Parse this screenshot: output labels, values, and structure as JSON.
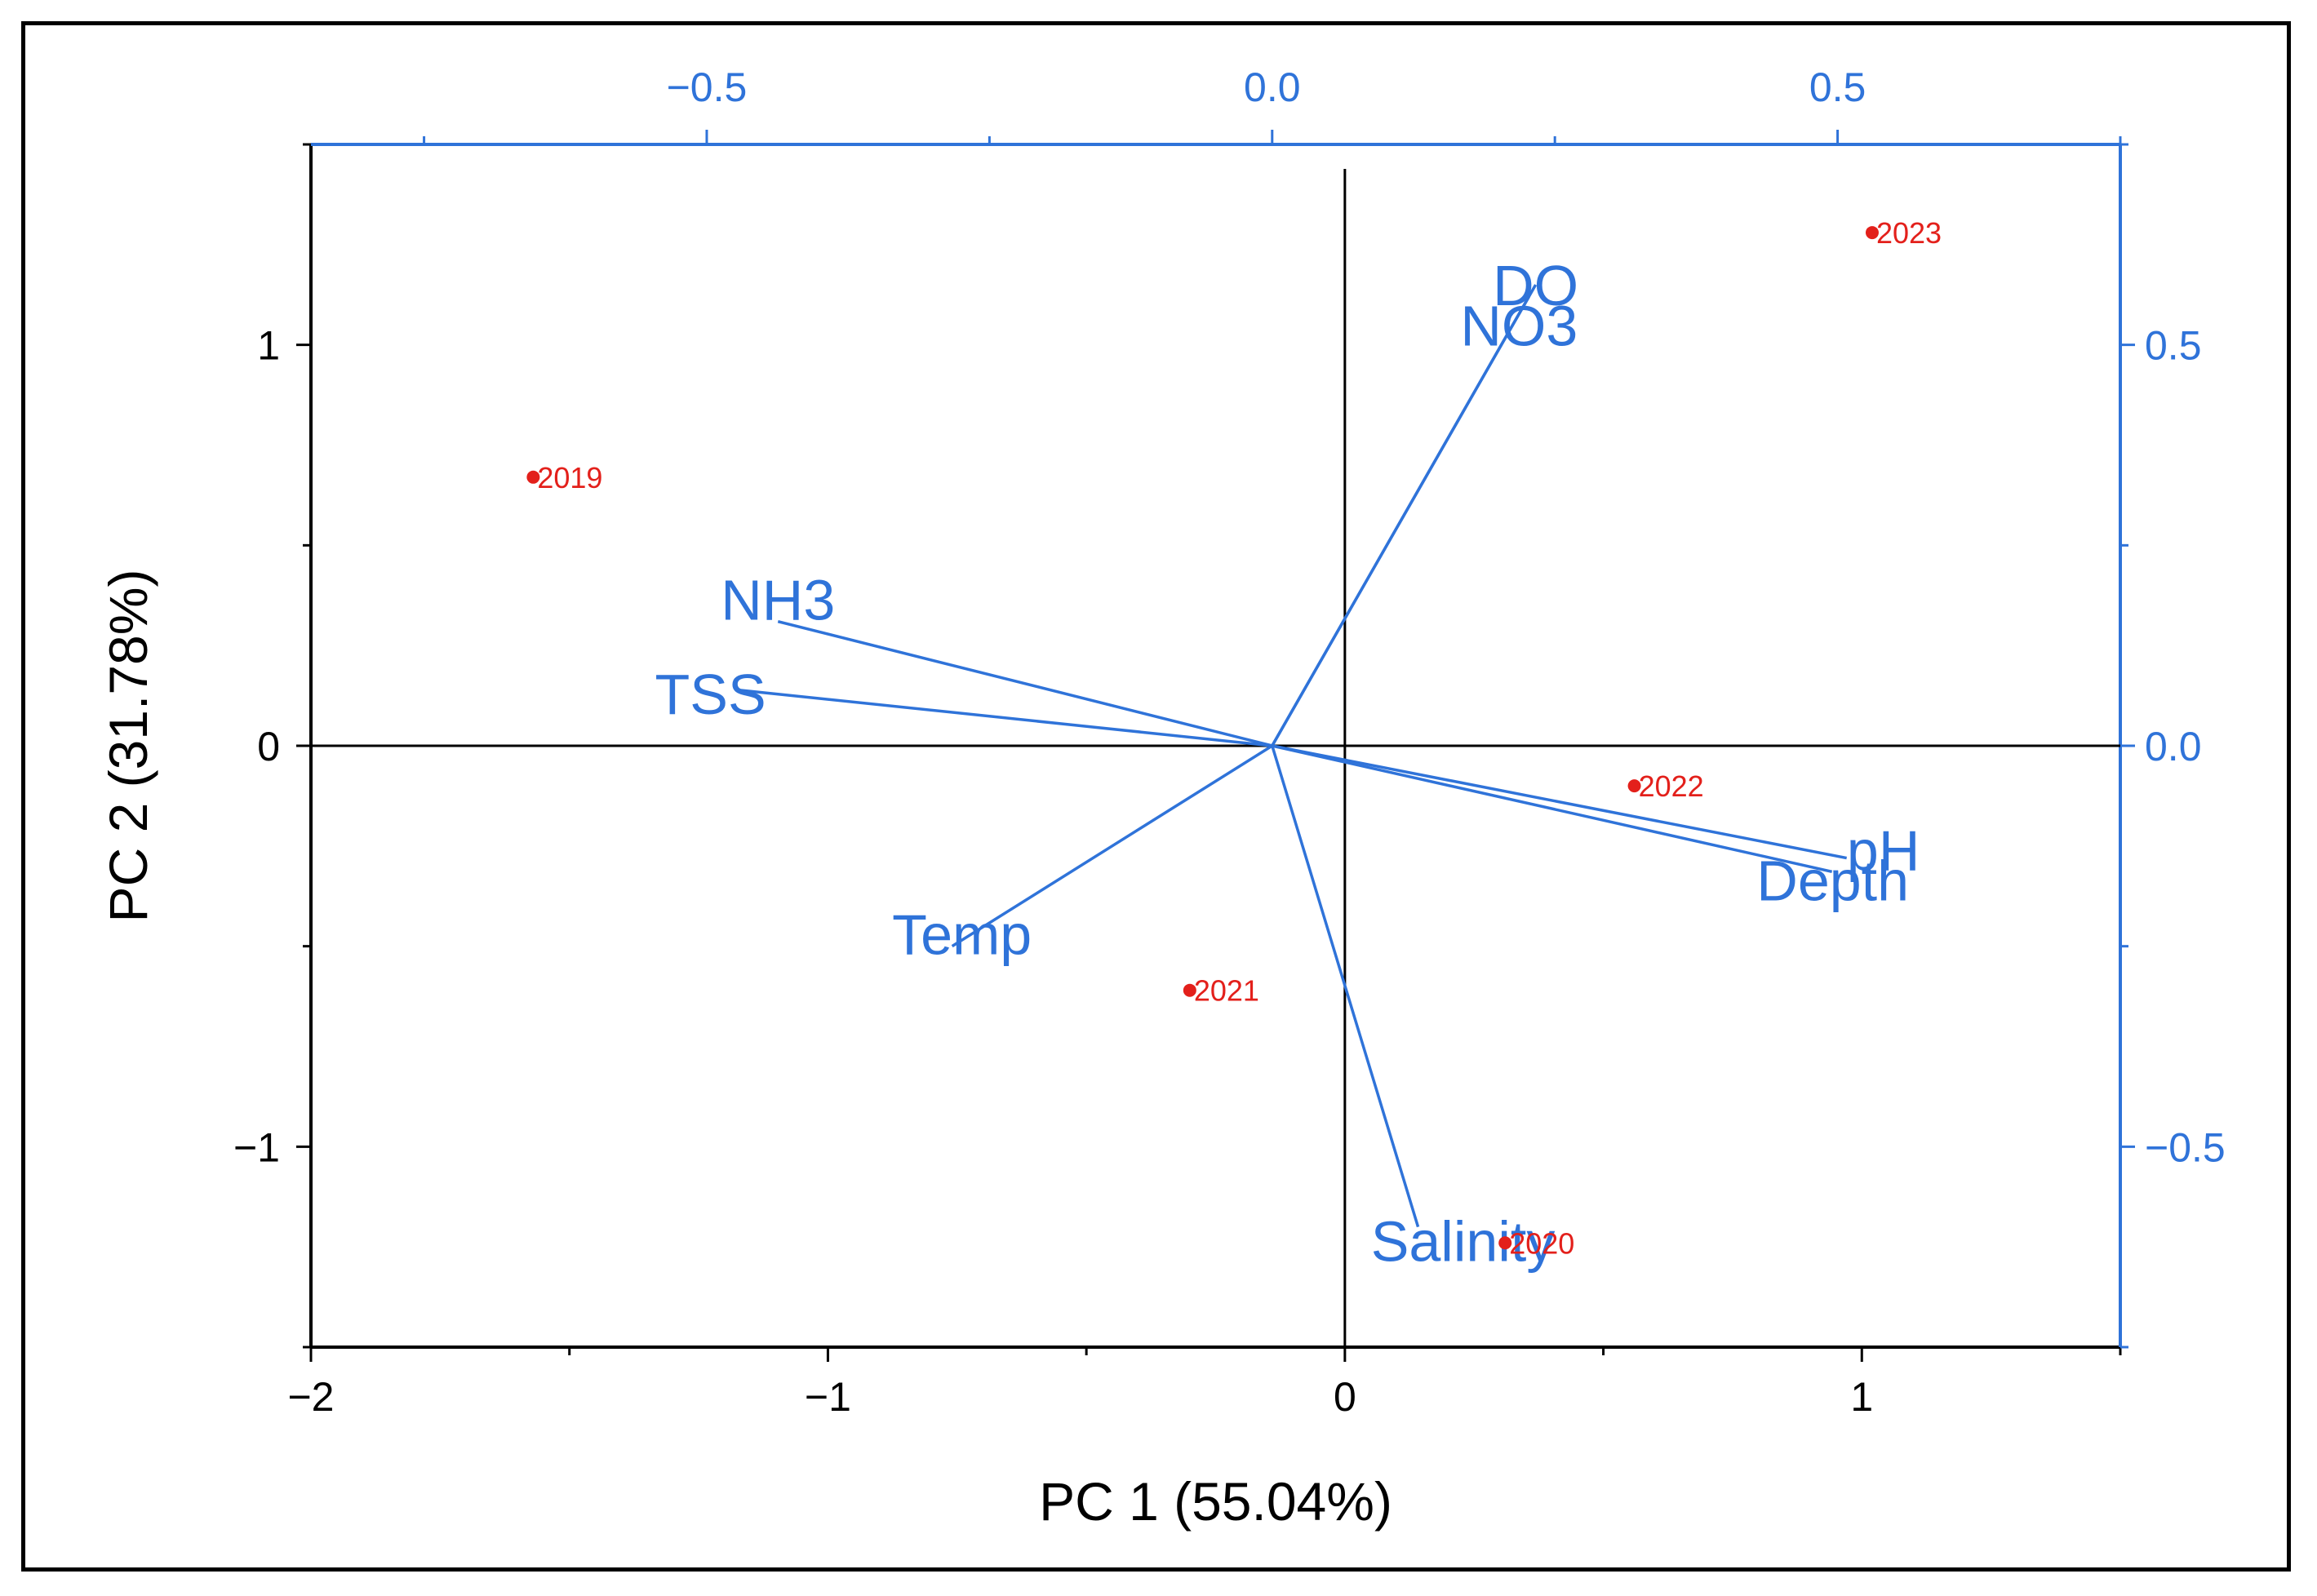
{
  "chart_data": {
    "type": "scatter",
    "subtype": "pca-biplot",
    "xlabel": "PC 1 (55.04%)",
    "ylabel": "PC 2 (31.78%)",
    "score_axes": {
      "xlim": [
        -2,
        1.5
      ],
      "ylim": [
        -1.5,
        1.5
      ]
    },
    "loading_axes": {
      "xlim": [
        -0.85,
        0.75
      ],
      "ylim": [
        -0.75,
        0.75
      ]
    },
    "ticks": {
      "bottom": [
        {
          "value": -2,
          "label": "−2"
        },
        {
          "value": -1,
          "label": "−1"
        },
        {
          "value": 0,
          "label": "0"
        },
        {
          "value": 1,
          "label": "1"
        }
      ],
      "left": [
        {
          "value": 1,
          "label": "1"
        },
        {
          "value": 0,
          "label": "0"
        },
        {
          "value": -1,
          "label": "−1"
        }
      ],
      "top": [
        {
          "value": -0.5,
          "label": "−0.5"
        },
        {
          "value": 0,
          "label": "0.0"
        },
        {
          "value": 0.5,
          "label": "0.5"
        }
      ],
      "right": [
        {
          "value": 0.5,
          "label": "0.5"
        },
        {
          "value": 0,
          "label": "0.0"
        },
        {
          "value": -0.5,
          "label": "−0.5"
        }
      ]
    },
    "scores": [
      {
        "label": "2019",
        "x": -1.57,
        "y": 0.67
      },
      {
        "label": "2020",
        "x": 0.31,
        "y": -1.24
      },
      {
        "label": "2021",
        "x": -0.3,
        "y": -0.61
      },
      {
        "label": "2022",
        "x": 0.56,
        "y": -0.1
      },
      {
        "label": "2023",
        "x": 1.02,
        "y": 1.28
      }
    ],
    "loadings": [
      {
        "label": "DO",
        "x": 0.233,
        "y": 0.575
      },
      {
        "label": "NO3",
        "x": 0.227,
        "y": 0.56
      },
      {
        "label": "NH3",
        "x": -0.437,
        "y": 0.155
      },
      {
        "label": "TSS",
        "x": -0.475,
        "y": 0.07
      },
      {
        "label": "Temp",
        "x": -0.283,
        "y": -0.25
      },
      {
        "label": "Salinity",
        "x": 0.129,
        "y": -0.6
      },
      {
        "label": "pH",
        "x": 0.508,
        "y": -0.14
      },
      {
        "label": "Depth",
        "x": 0.495,
        "y": -0.157
      }
    ],
    "colors": {
      "loadings": "#2f73d9",
      "scores": "#e3201b",
      "axes": "#000000"
    }
  }
}
